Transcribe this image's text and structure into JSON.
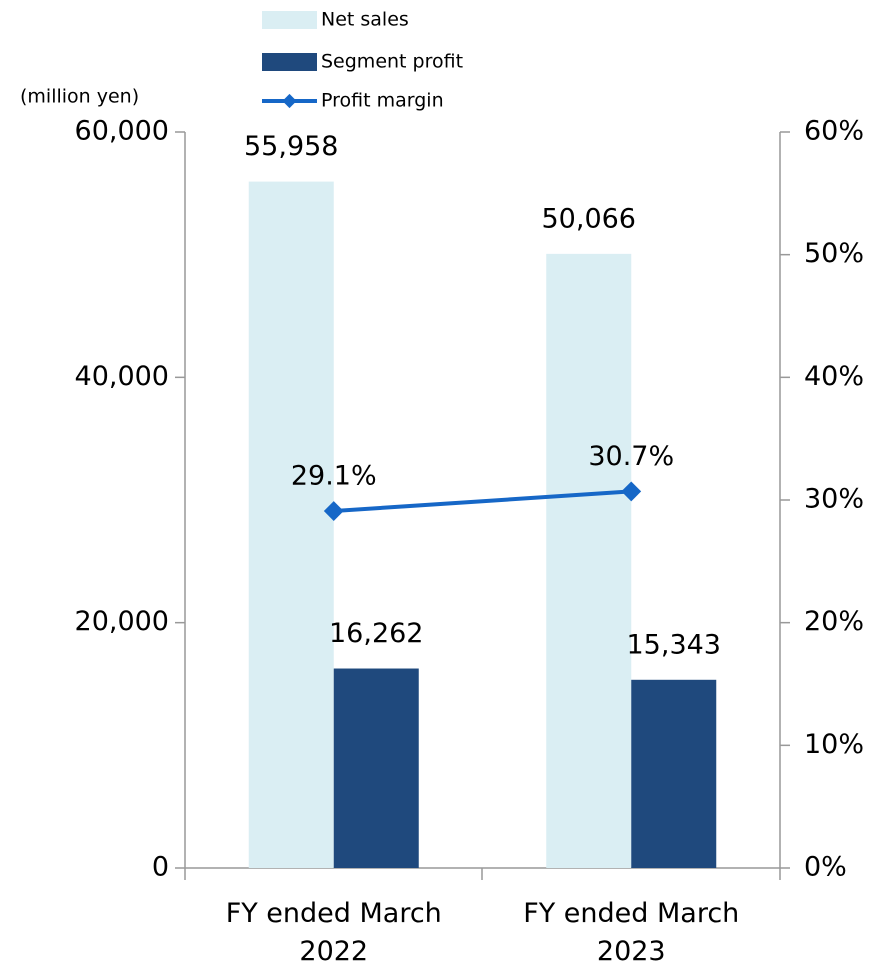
{
  "chart_data": {
    "type": "bar",
    "y_label": "(million yen)",
    "categories": [
      "FY ended March 2022",
      "FY ended March 2023"
    ],
    "series": [
      {
        "name": "Net sales",
        "type": "bar",
        "color": "#daeef3",
        "values": [
          55958,
          50066
        ],
        "value_labels": [
          "55,958",
          "50,066"
        ]
      },
      {
        "name": "Segment profit",
        "type": "bar",
        "color": "#1f497d",
        "values": [
          16262,
          15343
        ],
        "value_labels": [
          "16,262",
          "15,343"
        ]
      },
      {
        "name": "Profit margin",
        "type": "line",
        "axis": "y2",
        "color": "#1667c7",
        "values": [
          29.1,
          30.7
        ],
        "value_labels": [
          "29.1%",
          "30.7%"
        ]
      }
    ],
    "ylim": [
      0,
      60000
    ],
    "yticks": [
      0,
      {
        "value": 20000,
        "label": "20,000"
      },
      {
        "value": 40000,
        "label": "40,000"
      },
      {
        "value": 60000,
        "label": "60,000"
      }
    ],
    "y2lim": [
      0,
      60
    ],
    "y2ticks": [
      {
        "value": 0,
        "label": "0%"
      },
      {
        "value": 10,
        "label": "10%"
      },
      {
        "value": 20,
        "label": "20%"
      },
      {
        "value": 30,
        "label": "30%"
      },
      {
        "value": 40,
        "label": "40%"
      },
      {
        "value": 50,
        "label": "50%"
      },
      {
        "value": 60,
        "label": "60%"
      }
    ],
    "grid": false,
    "legend": "top"
  }
}
